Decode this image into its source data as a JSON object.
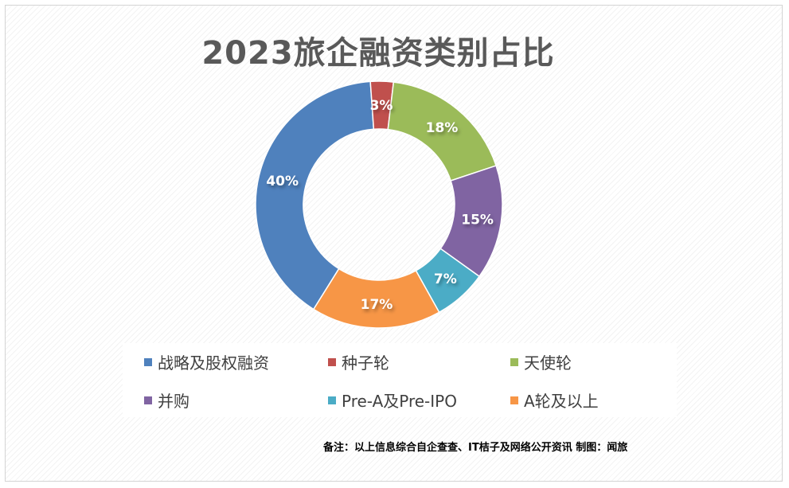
{
  "chart_data": {
    "type": "pie",
    "variant": "donut",
    "title": "2023旅企融资类别占比",
    "categories": [
      "战略及股权融资",
      "种子轮",
      "天使轮",
      "并购",
      "Pre-A及Pre-IPO",
      "A轮及以上"
    ],
    "values": [
      40,
      3,
      18,
      15,
      7,
      17
    ],
    "value_labels": [
      "40%",
      "3%",
      "18%",
      "15%",
      "7%",
      "17%"
    ],
    "colors": [
      "#4f81bd",
      "#c0504d",
      "#9bbb59",
      "#8064a2",
      "#4bacc6",
      "#f79646"
    ],
    "unit": "%",
    "legend_position": "bottom"
  },
  "legend": {
    "items": [
      {
        "label": "战略及股权融资",
        "color": "#4f81bd"
      },
      {
        "label": "种子轮",
        "color": "#c0504d"
      },
      {
        "label": "天使轮",
        "color": "#9bbb59"
      },
      {
        "label": "并购",
        "color": "#8064a2"
      },
      {
        "label": "Pre-A及Pre-IPO",
        "color": "#4bacc6"
      },
      {
        "label": "A轮及以上",
        "color": "#f79646"
      }
    ]
  },
  "footnote": "备注：以上信息综合自企查查、IT桔子及网络公开资讯    制图：闻旅"
}
